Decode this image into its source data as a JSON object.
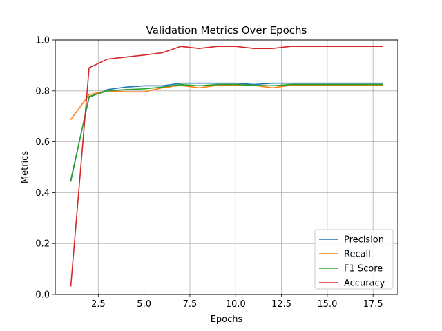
{
  "chart_data": {
    "type": "line",
    "title": "Validation Metrics Over Epochs",
    "xlabel": "Epochs",
    "ylabel": "Metrics",
    "xlim": [
      0.15,
      18.85
    ],
    "ylim": [
      0.0,
      1.0
    ],
    "xticks": [
      2.5,
      5.0,
      7.5,
      10.0,
      12.5,
      15.0,
      17.5
    ],
    "xtick_labels": [
      "2.5",
      "5.0",
      "7.5",
      "10.0",
      "12.5",
      "15.0",
      "17.5"
    ],
    "yticks": [
      0.0,
      0.2,
      0.4,
      0.6,
      0.8,
      1.0
    ],
    "ytick_labels": [
      "0.0",
      "0.2",
      "0.4",
      "0.6",
      "0.8",
      "1.0"
    ],
    "grid": true,
    "legend_position": "bottom-right",
    "x": [
      1,
      2,
      3,
      4,
      5,
      6,
      7,
      8,
      9,
      10,
      11,
      12,
      13,
      14,
      15,
      16,
      17,
      18
    ],
    "series": [
      {
        "name": "Precision",
        "color": "#1f77b4",
        "values": [
          0.45,
          0.775,
          0.805,
          0.815,
          0.82,
          0.82,
          0.83,
          0.83,
          0.83,
          0.83,
          0.825,
          0.83,
          0.83,
          0.83,
          0.83,
          0.83,
          0.83,
          0.83
        ]
      },
      {
        "name": "Recall",
        "color": "#ff7f0e",
        "values": [
          0.688,
          0.785,
          0.8,
          0.796,
          0.796,
          0.812,
          0.822,
          0.812,
          0.822,
          0.822,
          0.822,
          0.812,
          0.822,
          0.822,
          0.822,
          0.822,
          0.822,
          0.822
        ]
      },
      {
        "name": "F1 Score",
        "color": "#2ca02c",
        "values": [
          0.445,
          0.778,
          0.8,
          0.805,
          0.808,
          0.815,
          0.825,
          0.82,
          0.825,
          0.825,
          0.822,
          0.82,
          0.825,
          0.825,
          0.825,
          0.825,
          0.825,
          0.825
        ]
      },
      {
        "name": "Accuracy",
        "color": "#d62728",
        "values": [
          0.033,
          0.891,
          0.925,
          0.933,
          0.941,
          0.95,
          0.975,
          0.967,
          0.975,
          0.975,
          0.967,
          0.967,
          0.975,
          0.975,
          0.975,
          0.975,
          0.975,
          0.975
        ]
      }
    ]
  }
}
